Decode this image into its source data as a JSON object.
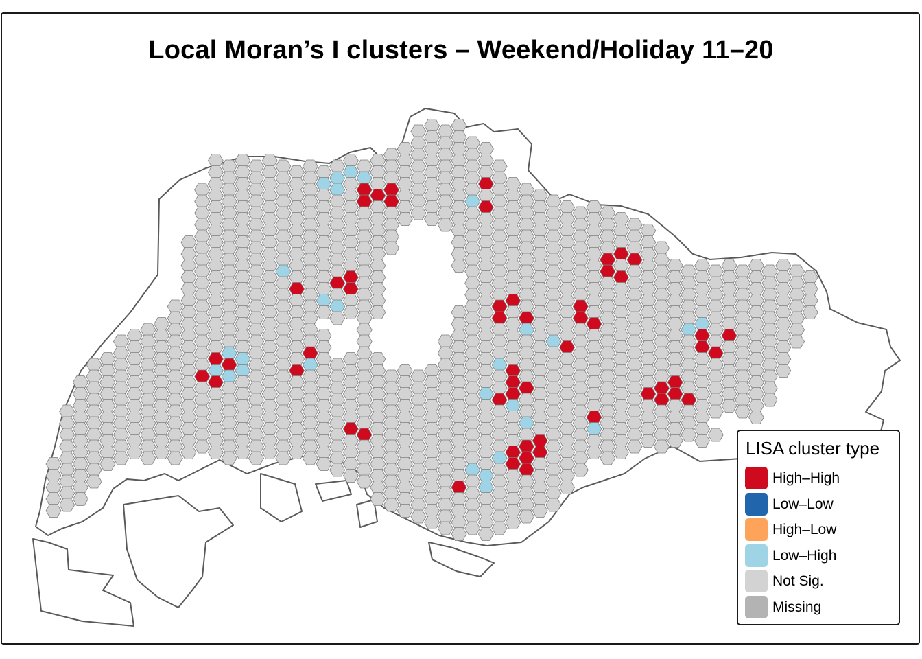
{
  "title": "Local Moran’s I clusters – Weekend/Holiday 11–20",
  "legend": {
    "title": "LISA cluster type",
    "items": [
      {
        "label": "High–High",
        "color": "#cf0a1e"
      },
      {
        "label": "Low–Low",
        "color": "#2166ac"
      },
      {
        "label": "High–Low",
        "color": "#fda45a"
      },
      {
        "label": "Low–High",
        "color": "#9fd3e6"
      },
      {
        "label": "Not Sig.",
        "color": "#d3d3d3"
      },
      {
        "label": "Missing",
        "color": "#b3b3b3"
      }
    ]
  },
  "colors": {
    "hex_border": "#7f7f7f",
    "coastline": "#5a5a5a"
  }
}
